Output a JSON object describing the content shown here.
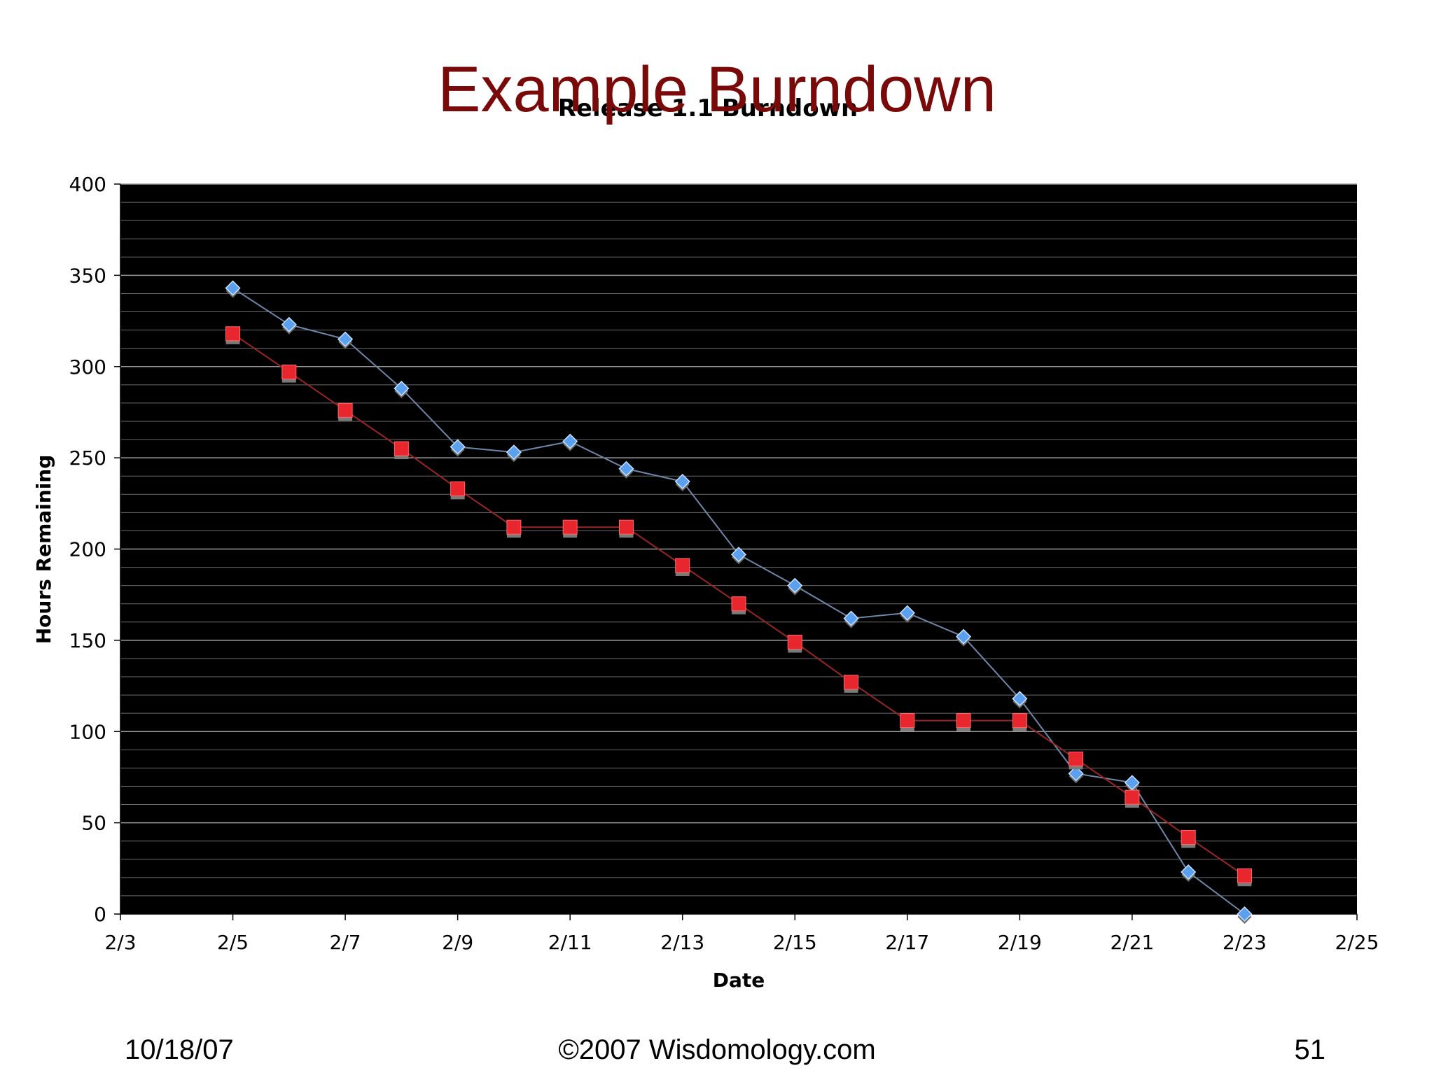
{
  "slide": {
    "title": "Example Burndown",
    "footer_date": "10/18/07",
    "footer_copyright": "©2007 Wisdomology.com",
    "page_number": "51"
  },
  "chart_data": {
    "type": "line",
    "title": "Release 1.1 Burndown",
    "xlabel": "Date",
    "ylabel": "Hours Remaining",
    "xlim": [
      "2/3",
      "2/25"
    ],
    "ylim": [
      0,
      400
    ],
    "x_ticks": [
      "2/3",
      "2/5",
      "2/7",
      "2/9",
      "2/11",
      "2/13",
      "2/15",
      "2/17",
      "2/19",
      "2/21",
      "2/23",
      "2/25"
    ],
    "y_ticks": [
      0,
      50,
      100,
      150,
      200,
      250,
      300,
      350,
      400
    ],
    "grid": true,
    "background": "#000000",
    "x": [
      "2/5",
      "2/6",
      "2/7",
      "2/8",
      "2/9",
      "2/10",
      "2/11",
      "2/12",
      "2/13",
      "2/14",
      "2/15",
      "2/16",
      "2/17",
      "2/18",
      "2/19",
      "2/20",
      "2/21",
      "2/22",
      "2/23"
    ],
    "series": [
      {
        "marker": "diamond",
        "color": "#5aa0ee",
        "line_color": "#6e86a8",
        "values": [
          343,
          323,
          315,
          288,
          256,
          253,
          259,
          244,
          237,
          197,
          180,
          162,
          165,
          152,
          118,
          77,
          72,
          23,
          0
        ]
      },
      {
        "marker": "square",
        "color": "#e8262e",
        "line_color": "#9a2525",
        "values": [
          318,
          297,
          276,
          255,
          233,
          212,
          212,
          212,
          191,
          170,
          149,
          127,
          106,
          106,
          106,
          85,
          64,
          42,
          21
        ]
      }
    ]
  }
}
